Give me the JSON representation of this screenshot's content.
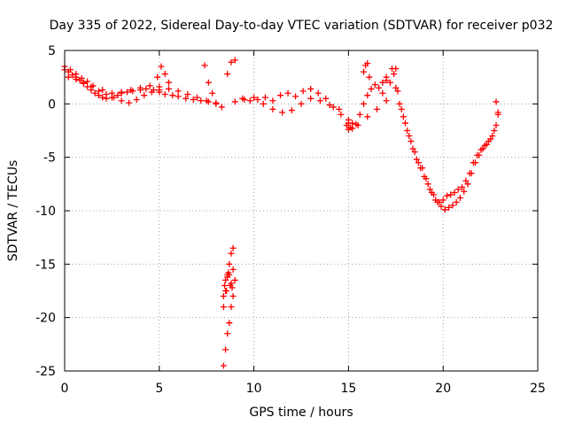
{
  "chart_data": {
    "type": "scatter",
    "title": "Day 335 of 2022, Sidereal Day-to-day VTEC variation (SDTVAR) for receiver p032",
    "xlabel": "GPS time / hours",
    "ylabel": "SDTVAR / TECUs",
    "xlim": [
      0,
      25
    ],
    "ylim": [
      -25,
      5
    ],
    "xticks": [
      0,
      5,
      10,
      15,
      20,
      25
    ],
    "yticks": [
      5,
      0,
      -5,
      -10,
      -15,
      -20,
      -25
    ],
    "grid": true,
    "marker": "+",
    "series": [
      {
        "name": "SDTVAR",
        "color": "#ff0000",
        "x": [
          0.0,
          0.2,
          0.4,
          0.6,
          0.8,
          1.0,
          1.2,
          1.4,
          1.6,
          1.8,
          2.0,
          2.2,
          2.5,
          2.8,
          3.0,
          3.3,
          3.6,
          4.0,
          4.3,
          4.7,
          5.0,
          5.3,
          5.7,
          6.0,
          6.4,
          6.8,
          7.2,
          7.6,
          8.0,
          8.3,
          0.0,
          0.3,
          0.6,
          0.9,
          1.2,
          1.5,
          2.0,
          2.5,
          3.0,
          3.5,
          4.0,
          4.5,
          5.0,
          5.5,
          6.0,
          6.5,
          7.0,
          7.5,
          8.0,
          0.2,
          0.6,
          1.0,
          1.4,
          1.8,
          2.2,
          2.6,
          3.0,
          3.4,
          3.8,
          4.2,
          4.6,
          5.0,
          4.9,
          5.1,
          5.3,
          5.5,
          7.4,
          7.6,
          7.8,
          8.6,
          8.8,
          9.0,
          8.4,
          8.5,
          8.6,
          8.7,
          8.8,
          8.9,
          9.0,
          8.4,
          8.5,
          8.6,
          8.7,
          8.8,
          8.9,
          8.4,
          8.45,
          8.5,
          8.55,
          8.6,
          8.65,
          8.7,
          8.75,
          8.8,
          8.85,
          8.9,
          9.0,
          9.4,
          9.8,
          10.2,
          10.6,
          11.0,
          11.4,
          11.8,
          12.2,
          12.6,
          13.0,
          13.4,
          13.8,
          14.2,
          14.6,
          15.0,
          15.2,
          15.4,
          15.6,
          15.8,
          16.0,
          16.2,
          16.4,
          16.6,
          16.8,
          17.0,
          9.5,
          10.0,
          10.5,
          11.0,
          11.5,
          12.0,
          12.5,
          13.0,
          13.5,
          14.0,
          14.5,
          15.0,
          15.5,
          16.0,
          16.5,
          17.0,
          14.9,
          15.0,
          15.1,
          15.2,
          15.8,
          15.9,
          16.0,
          16.1,
          16.8,
          17.0,
          17.2,
          17.3,
          17.5,
          17.7,
          17.9,
          18.1,
          18.3,
          18.5,
          18.7,
          18.9,
          19.1,
          19.3,
          19.5,
          19.7,
          19.9,
          20.1,
          20.3,
          20.5,
          20.7,
          20.9,
          21.1,
          21.3,
          21.5,
          21.7,
          21.9,
          22.1,
          22.3,
          22.5,
          22.7,
          22.9,
          17.4,
          17.6,
          17.8,
          18.0,
          18.2,
          18.4,
          18.6,
          18.8,
          19.0,
          19.2,
          19.4,
          19.6,
          19.8,
          20.0,
          20.2,
          20.4,
          20.6,
          20.8,
          21.0,
          21.2,
          21.4,
          21.6,
          21.8,
          22.0,
          22.2,
          22.4,
          22.6,
          22.8,
          17.5,
          22.8,
          22.9
        ],
        "y": [
          3.2,
          3.0,
          2.7,
          2.5,
          2.2,
          1.9,
          1.6,
          1.3,
          1.0,
          0.8,
          0.6,
          0.5,
          0.6,
          0.8,
          1.0,
          1.1,
          1.2,
          1.3,
          1.4,
          1.3,
          1.1,
          0.9,
          0.8,
          0.7,
          0.5,
          0.4,
          0.3,
          0.2,
          0.0,
          -0.3,
          3.5,
          3.2,
          2.8,
          2.4,
          2.1,
          1.7,
          1.3,
          1.0,
          1.1,
          1.3,
          1.5,
          1.7,
          1.6,
          1.4,
          1.2,
          0.9,
          0.6,
          0.3,
          0.1,
          2.5,
          2.3,
          2.0,
          1.6,
          1.2,
          0.9,
          0.6,
          0.3,
          0.1,
          0.4,
          0.8,
          1.1,
          1.3,
          2.5,
          3.5,
          2.8,
          2.0,
          3.6,
          2.0,
          1.0,
          2.8,
          3.9,
          4.1,
          -24.5,
          -23.0,
          -21.5,
          -20.5,
          -19.0,
          -18.0,
          -16.5,
          -19.0,
          -17.5,
          -16.0,
          -15.0,
          -14.0,
          -13.5,
          -18.0,
          -17.0,
          -16.5,
          -17.5,
          -16.2,
          -15.8,
          -16.0,
          -17.0,
          -16.8,
          -17.2,
          -15.5,
          0.2,
          0.5,
          0.3,
          0.4,
          0.6,
          0.3,
          0.8,
          1.0,
          0.7,
          1.2,
          1.4,
          1.0,
          0.5,
          -0.3,
          -1.0,
          -1.8,
          -2.3,
          -1.9,
          -1.0,
          0.0,
          0.8,
          1.4,
          1.8,
          1.5,
          2.0,
          2.2,
          0.4,
          0.6,
          0.0,
          -0.5,
          -0.8,
          -0.6,
          0.0,
          0.5,
          0.3,
          -0.1,
          -0.5,
          -1.5,
          -2.0,
          -1.2,
          -0.5,
          0.3,
          -2.0,
          -2.4,
          -2.2,
          -1.8,
          3.0,
          3.6,
          3.8,
          2.5,
          1.0,
          2.5,
          2.0,
          3.3,
          1.5,
          0.0,
          -1.2,
          -2.5,
          -3.5,
          -4.5,
          -5.5,
          -6.0,
          -7.0,
          -8.0,
          -8.5,
          -9.2,
          -9.6,
          -9.9,
          -9.7,
          -9.5,
          -9.2,
          -8.8,
          -8.2,
          -7.5,
          -6.5,
          -5.5,
          -4.8,
          -4.2,
          -3.8,
          -3.3,
          -2.5,
          -1.0,
          2.8,
          1.2,
          -0.5,
          -1.8,
          -3.0,
          -4.2,
          -5.2,
          -6.0,
          -6.8,
          -7.5,
          -8.3,
          -9.0,
          -9.2,
          -9.0,
          -8.6,
          -8.5,
          -8.3,
          -8.0,
          -7.8,
          -7.2,
          -6.5,
          -5.5,
          -4.8,
          -4.3,
          -3.9,
          -3.5,
          -3.0,
          -2.0,
          3.3,
          0.2,
          -0.8
        ]
      }
    ]
  }
}
